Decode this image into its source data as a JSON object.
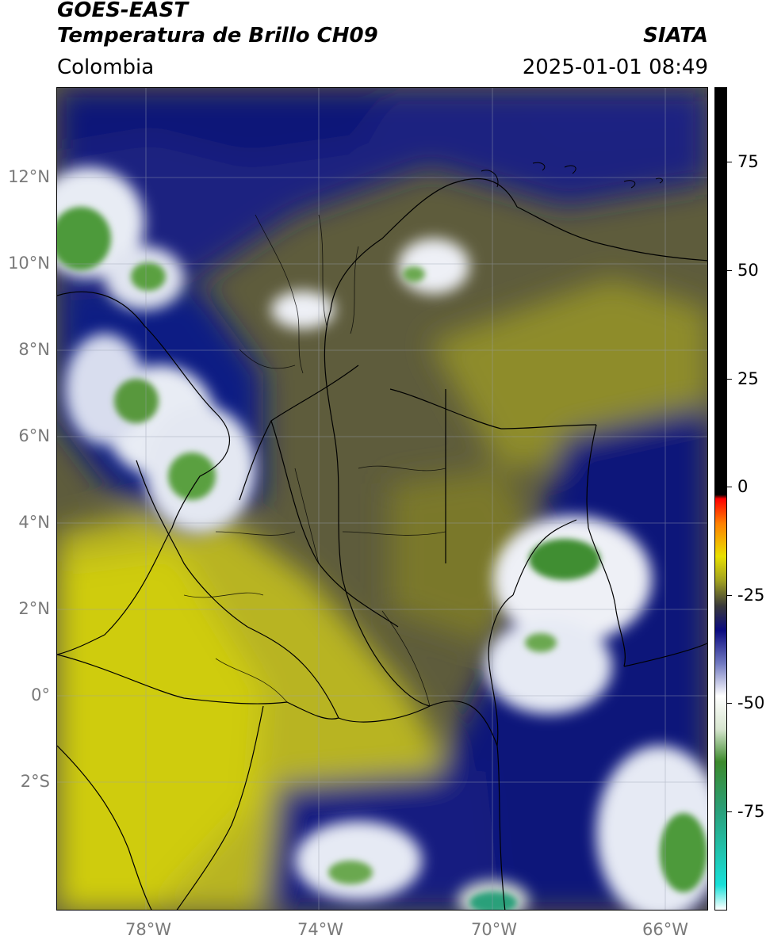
{
  "header": {
    "satellite": "GOES-EAST",
    "product": "Temperatura de Brillo CH09",
    "region": "Colombia",
    "agency": "SIATA",
    "datetime": "2025-01-01 08:49"
  },
  "map": {
    "lat_labels": [
      "12°N",
      "10°N",
      "8°N",
      "6°N",
      "4°N",
      "2°N",
      "0°",
      "2°S"
    ],
    "lon_labels": [
      "78°W",
      "74°W",
      "70°W",
      "66°W"
    ],
    "colors": {
      "yellow": "#c8c414",
      "olive": "#6e6a2e",
      "dark_olive": "#4a4a3a",
      "navy": "#0c1478",
      "blue": "#3a48a0",
      "white": "#f2f4f8",
      "green": "#4e9a3a",
      "teal": "#1ab898"
    }
  },
  "colorbar": {
    "tick_labels": [
      "75",
      "50",
      "25",
      "0",
      "-25",
      "-50",
      "-75"
    ],
    "colors": [
      "#ffffff",
      "#18e0d8",
      "#2aa07a",
      "#3c8a2c",
      "#d8e6d0",
      "#ffffff",
      "#7078c0",
      "#0a0a80",
      "#3a3a3a",
      "#a0a020",
      "#e8e000",
      "#ff8000",
      "#ff0000",
      "#000000"
    ]
  }
}
